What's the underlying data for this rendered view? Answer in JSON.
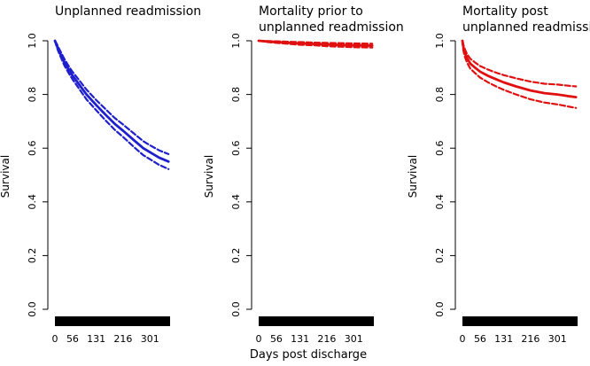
{
  "figure": {
    "shared_xlabel": "Days post discharge"
  },
  "chart_data": [
    {
      "type": "line",
      "title": [
        "Unplanned readmission"
      ],
      "ylabel": "Survival",
      "ylim": [
        0,
        1
      ],
      "yticks": [
        0.0,
        0.2,
        0.4,
        0.6,
        0.8,
        1.0
      ],
      "ytick_labels": [
        "0.0",
        "0.2",
        "0.4",
        "0.6",
        "0.8",
        "1.0"
      ],
      "xlim": [
        0,
        365
      ],
      "xticks": [
        0,
        56,
        131,
        216,
        301
      ],
      "xtick_labels": [
        "0",
        "56",
        "131",
        "216",
        "301"
      ],
      "color": "#1f1fcc",
      "series": [
        {
          "name": "estimate",
          "style": "solid",
          "x": [
            0,
            5,
            10,
            20,
            30,
            45,
            56,
            75,
            100,
            131,
            160,
            190,
            216,
            250,
            280,
            301,
            330,
            360
          ],
          "y": [
            1.0,
            0.985,
            0.97,
            0.945,
            0.92,
            0.89,
            0.87,
            0.84,
            0.8,
            0.76,
            0.725,
            0.69,
            0.665,
            0.63,
            0.6,
            0.585,
            0.565,
            0.55
          ]
        },
        {
          "name": "upper 95% CI",
          "style": "dashed",
          "x": [
            0,
            5,
            10,
            20,
            30,
            45,
            56,
            75,
            100,
            131,
            160,
            190,
            216,
            250,
            280,
            301,
            330,
            360
          ],
          "y": [
            1.0,
            0.99,
            0.978,
            0.955,
            0.932,
            0.903,
            0.884,
            0.856,
            0.818,
            0.779,
            0.746,
            0.712,
            0.688,
            0.655,
            0.626,
            0.611,
            0.592,
            0.578
          ]
        },
        {
          "name": "lower 95% CI",
          "style": "dashed",
          "x": [
            0,
            5,
            10,
            20,
            30,
            45,
            56,
            75,
            100,
            131,
            160,
            190,
            216,
            250,
            280,
            301,
            330,
            360
          ],
          "y": [
            1.0,
            0.98,
            0.962,
            0.935,
            0.908,
            0.877,
            0.856,
            0.824,
            0.782,
            0.741,
            0.704,
            0.668,
            0.642,
            0.605,
            0.574,
            0.559,
            0.538,
            0.522
          ]
        }
      ]
    },
    {
      "type": "line",
      "title": [
        "Mortality prior to",
        "unplanned readmission"
      ],
      "ylabel": "Survival",
      "ylim": [
        0,
        1
      ],
      "yticks": [
        0.0,
        0.2,
        0.4,
        0.6,
        0.8,
        1.0
      ],
      "ytick_labels": [
        "0.0",
        "0.2",
        "0.4",
        "0.6",
        "0.8",
        "1.0"
      ],
      "xlim": [
        0,
        365
      ],
      "xticks": [
        0,
        56,
        131,
        216,
        301
      ],
      "xtick_labels": [
        "0",
        "56",
        "131",
        "216",
        "301"
      ],
      "color": "#e01010",
      "series": [
        {
          "name": "estimate",
          "style": "solid",
          "x": [
            0,
            30,
            56,
            100,
            131,
            180,
            216,
            260,
            301,
            360
          ],
          "y": [
            1.0,
            0.997,
            0.995,
            0.992,
            0.99,
            0.988,
            0.986,
            0.984,
            0.983,
            0.982
          ]
        },
        {
          "name": "upper 95% CI",
          "style": "dashed",
          "x": [
            0,
            30,
            56,
            100,
            131,
            180,
            216,
            260,
            301,
            360
          ],
          "y": [
            1.0,
            0.999,
            0.998,
            0.996,
            0.995,
            0.993,
            0.992,
            0.991,
            0.99,
            0.989
          ]
        },
        {
          "name": "lower 95% CI",
          "style": "dashed",
          "x": [
            0,
            30,
            56,
            100,
            131,
            180,
            216,
            260,
            301,
            360
          ],
          "y": [
            1.0,
            0.995,
            0.992,
            0.988,
            0.985,
            0.983,
            0.98,
            0.978,
            0.976,
            0.975
          ]
        }
      ]
    },
    {
      "type": "line",
      "title": [
        "Mortality post",
        "unplanned readmission"
      ],
      "ylabel": "Survival",
      "ylim": [
        0,
        1
      ],
      "yticks": [
        0.0,
        0.2,
        0.4,
        0.6,
        0.8,
        1.0
      ],
      "ytick_labels": [
        "0.0",
        "0.2",
        "0.4",
        "0.6",
        "0.8",
        "1.0"
      ],
      "xlim": [
        0,
        365
      ],
      "xticks": [
        0,
        56,
        131,
        216,
        301
      ],
      "xtick_labels": [
        "0",
        "56",
        "131",
        "216",
        "301"
      ],
      "color": "#e01010",
      "series": [
        {
          "name": "estimate",
          "style": "solid",
          "x": [
            0,
            3,
            8,
            15,
            25,
            40,
            56,
            80,
            110,
            131,
            170,
            216,
            260,
            301,
            340,
            360
          ],
          "y": [
            1.0,
            0.975,
            0.955,
            0.935,
            0.915,
            0.9,
            0.885,
            0.87,
            0.855,
            0.845,
            0.83,
            0.815,
            0.805,
            0.8,
            0.793,
            0.79
          ]
        },
        {
          "name": "upper 95% CI",
          "style": "dashed",
          "x": [
            0,
            3,
            8,
            15,
            25,
            40,
            56,
            80,
            110,
            131,
            170,
            216,
            260,
            301,
            340,
            360
          ],
          "y": [
            1.0,
            0.985,
            0.968,
            0.95,
            0.933,
            0.919,
            0.906,
            0.893,
            0.88,
            0.872,
            0.86,
            0.848,
            0.84,
            0.837,
            0.832,
            0.83
          ]
        },
        {
          "name": "lower 95% CI",
          "style": "dashed",
          "x": [
            0,
            3,
            8,
            15,
            25,
            40,
            56,
            80,
            110,
            131,
            170,
            216,
            260,
            301,
            340,
            360
          ],
          "y": [
            1.0,
            0.963,
            0.94,
            0.918,
            0.896,
            0.88,
            0.863,
            0.846,
            0.828,
            0.817,
            0.8,
            0.782,
            0.77,
            0.763,
            0.754,
            0.75
          ]
        }
      ]
    }
  ]
}
